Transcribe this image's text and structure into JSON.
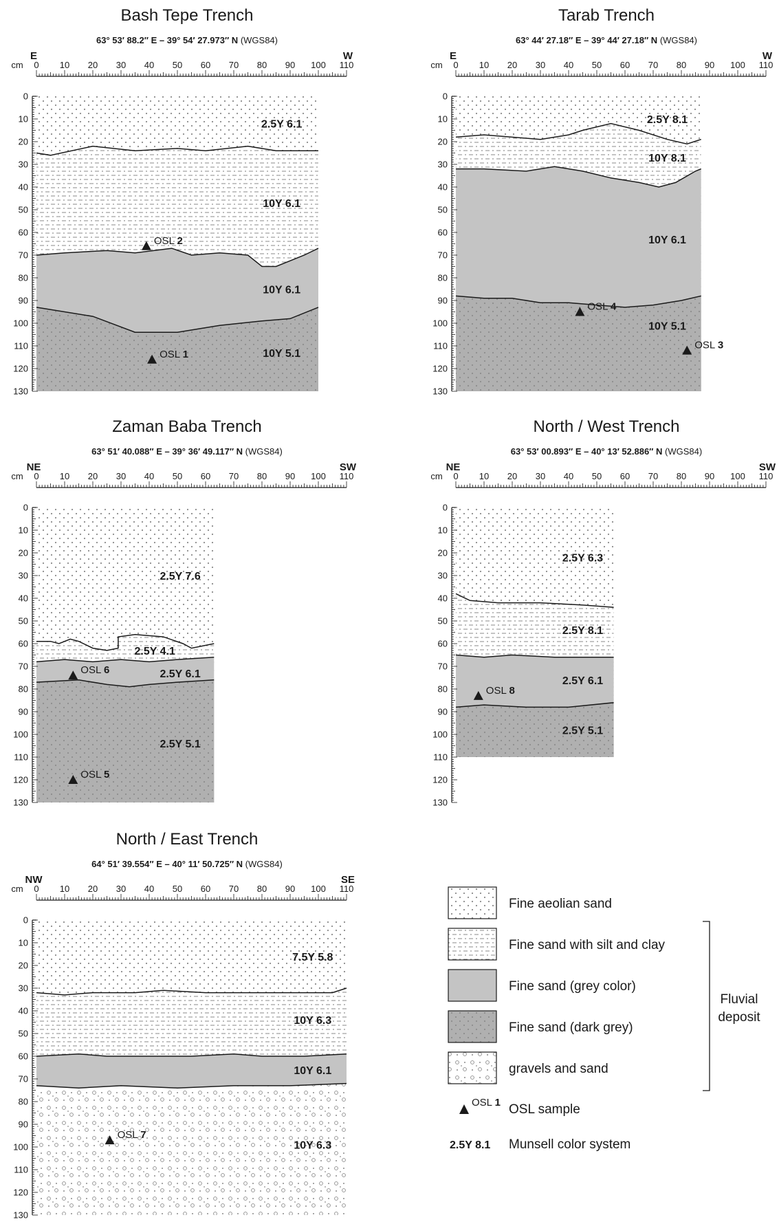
{
  "trenches": [
    {
      "id": "bash-tepe",
      "title": "Bash Tepe Trench",
      "coords": "63° 53′ 88.2″ E  –  39° 54′ 27.973″ N",
      "coords_suffix": "(WGS84)",
      "left_dir": "E",
      "right_dir": "W",
      "width_cm": 100,
      "layers": [
        {
          "pattern": "aeolian",
          "top": [
            [
              0,
              25
            ],
            [
              5,
              26
            ],
            [
              20,
              22
            ],
            [
              35,
              24
            ],
            [
              50,
              23
            ],
            [
              60,
              24
            ],
            [
              75,
              22
            ],
            [
              85,
              24
            ],
            [
              100,
              24
            ]
          ]
        },
        {
          "pattern": "silt",
          "top": [
            [
              0,
              70
            ],
            [
              10,
              69
            ],
            [
              25,
              68
            ],
            [
              35,
              69
            ],
            [
              48,
              67
            ],
            [
              55,
              70
            ],
            [
              65,
              69
            ],
            [
              75,
              70
            ],
            [
              80,
              75
            ],
            [
              85,
              75
            ],
            [
              95,
              70
            ],
            [
              100,
              67
            ]
          ]
        },
        {
          "pattern": "grey",
          "top": [
            [
              0,
              93
            ],
            [
              20,
              97
            ],
            [
              35,
              104
            ],
            [
              50,
              104
            ],
            [
              65,
              101
            ],
            [
              80,
              99
            ],
            [
              90,
              98
            ],
            [
              100,
              93
            ]
          ]
        },
        {
          "pattern": "darkgrey",
          "top": [
            [
              0,
              130
            ],
            [
              100,
              130
            ]
          ]
        }
      ],
      "labels": [
        {
          "text": "2.5Y 6.1",
          "x": 87,
          "y": 12
        },
        {
          "text": "10Y 6.1",
          "x": 87,
          "y": 47
        },
        {
          "text": "10Y 6.1",
          "x": 87,
          "y": 85
        },
        {
          "text": "10Y 5.1",
          "x": 87,
          "y": 113
        }
      ],
      "osl": [
        {
          "num": "2",
          "x": 39,
          "y": 66
        },
        {
          "num": "1",
          "x": 41,
          "y": 116
        }
      ]
    },
    {
      "id": "tarab",
      "title": "Tarab Trench",
      "coords": "63° 44′ 27.18″ E  –  39° 44′ 27.18″ N",
      "coords_suffix": "(WGS84)",
      "left_dir": "E",
      "right_dir": "W",
      "width_cm": 87,
      "layers": [
        {
          "pattern": "aeolian",
          "top": [
            [
              0,
              18
            ],
            [
              10,
              17
            ],
            [
              30,
              19
            ],
            [
              40,
              17
            ],
            [
              45,
              15
            ],
            [
              55,
              12
            ],
            [
              65,
              15
            ],
            [
              75,
              19
            ],
            [
              82,
              21
            ],
            [
              87,
              19
            ]
          ]
        },
        {
          "pattern": "silt",
          "top": [
            [
              0,
              32
            ],
            [
              10,
              32
            ],
            [
              25,
              33
            ],
            [
              35,
              31
            ],
            [
              45,
              33
            ],
            [
              55,
              36
            ],
            [
              65,
              38
            ],
            [
              72,
              40
            ],
            [
              78,
              38
            ],
            [
              85,
              33
            ],
            [
              87,
              32
            ]
          ]
        },
        {
          "pattern": "grey",
          "top": [
            [
              0,
              88
            ],
            [
              10,
              89
            ],
            [
              20,
              89
            ],
            [
              30,
              91
            ],
            [
              40,
              91
            ],
            [
              50,
              92
            ],
            [
              60,
              93
            ],
            [
              70,
              92
            ],
            [
              80,
              90
            ],
            [
              87,
              88
            ]
          ]
        },
        {
          "pattern": "darkgrey",
          "top": [
            [
              0,
              130
            ],
            [
              87,
              130
            ]
          ]
        }
      ],
      "labels": [
        {
          "text": "2.5Y 8.1",
          "x": 75,
          "y": 10
        },
        {
          "text": "10Y 8.1",
          "x": 75,
          "y": 27
        },
        {
          "text": "10Y 6.1",
          "x": 75,
          "y": 63
        },
        {
          "text": "10Y 5.1",
          "x": 75,
          "y": 101
        }
      ],
      "osl": [
        {
          "num": "4",
          "x": 44,
          "y": 95
        },
        {
          "num": "3",
          "x": 82,
          "y": 112
        }
      ]
    },
    {
      "id": "zaman-baba",
      "title": "Zaman Baba Trench",
      "coords": "63° 51′ 40.088″ E  –  39° 36′ 49.117″ N",
      "coords_suffix": "(WGS84)",
      "left_dir": "NE",
      "right_dir": "SW",
      "width_cm": 63,
      "layers": [
        {
          "pattern": "aeolian",
          "top": [
            [
              0,
              59
            ],
            [
              5,
              59
            ],
            [
              8,
              60
            ],
            [
              12,
              58
            ],
            [
              15,
              59
            ],
            [
              20,
              62
            ],
            [
              25,
              63
            ],
            [
              29,
              62
            ],
            [
              29,
              57
            ],
            [
              35,
              56
            ],
            [
              45,
              57
            ],
            [
              52,
              60
            ],
            [
              55,
              62
            ],
            [
              63,
              60
            ]
          ]
        },
        {
          "pattern": "silt",
          "top": [
            [
              0,
              68
            ],
            [
              10,
              67
            ],
            [
              20,
              68
            ],
            [
              30,
              67
            ],
            [
              40,
              68
            ],
            [
              50,
              67
            ],
            [
              63,
              66
            ]
          ]
        },
        {
          "pattern": "grey",
          "top": [
            [
              0,
              77
            ],
            [
              15,
              76
            ],
            [
              25,
              78
            ],
            [
              33,
              79
            ],
            [
              40,
              78
            ],
            [
              50,
              77
            ],
            [
              63,
              76
            ]
          ]
        },
        {
          "pattern": "darkgrey",
          "top": [
            [
              0,
              130
            ],
            [
              63,
              130
            ]
          ]
        }
      ],
      "labels": [
        {
          "text": "2.5Y 7.6",
          "x": 51,
          "y": 30
        },
        {
          "text": "2.5Y 4.1",
          "x": 42,
          "y": 63
        },
        {
          "text": "2.5Y 6.1",
          "x": 51,
          "y": 73
        },
        {
          "text": "2.5Y 5.1",
          "x": 51,
          "y": 104
        }
      ],
      "osl": [
        {
          "num": "6",
          "x": 13,
          "y": 74
        },
        {
          "num": "5",
          "x": 13,
          "y": 120
        }
      ]
    },
    {
      "id": "north-west",
      "title": "North / West Trench",
      "coords": "63° 53′ 00.893″ E  –  40° 13′ 52.886″ N",
      "coords_suffix": "(WGS84)",
      "left_dir": "NE",
      "right_dir": "SW",
      "width_cm": 56,
      "layers": [
        {
          "pattern": "aeolian",
          "top": [
            [
              0,
              38
            ],
            [
              5,
              41
            ],
            [
              15,
              42
            ],
            [
              30,
              42
            ],
            [
              45,
              43
            ],
            [
              56,
              44
            ]
          ]
        },
        {
          "pattern": "silt",
          "top": [
            [
              0,
              65
            ],
            [
              10,
              66
            ],
            [
              20,
              65
            ],
            [
              35,
              66
            ],
            [
              56,
              66
            ]
          ]
        },
        {
          "pattern": "grey",
          "top": [
            [
              0,
              88
            ],
            [
              10,
              87
            ],
            [
              25,
              88
            ],
            [
              40,
              88
            ],
            [
              56,
              86
            ]
          ]
        },
        {
          "pattern": "darkgrey",
          "top": [
            [
              0,
              110
            ],
            [
              56,
              110
            ]
          ]
        }
      ],
      "labels": [
        {
          "text": "2.5Y 6.3",
          "x": 45,
          "y": 22
        },
        {
          "text": "2.5Y 8.1",
          "x": 45,
          "y": 54
        },
        {
          "text": "2.5Y 6.1",
          "x": 45,
          "y": 76
        },
        {
          "text": "2.5Y 5.1",
          "x": 45,
          "y": 98
        }
      ],
      "osl": [
        {
          "num": "8",
          "x": 8,
          "y": 83
        }
      ]
    },
    {
      "id": "north-east",
      "title": "North / East Trench",
      "coords": "64° 51′ 39.554″ E  –  40° 11′ 50.725″ N",
      "coords_suffix": "(WGS84)",
      "left_dir": "NW",
      "right_dir": "SE",
      "width_cm": 110,
      "layers": [
        {
          "pattern": "aeolian",
          "top": [
            [
              0,
              32
            ],
            [
              10,
              33
            ],
            [
              20,
              32
            ],
            [
              35,
              32
            ],
            [
              45,
              31
            ],
            [
              60,
              32
            ],
            [
              75,
              32
            ],
            [
              90,
              32
            ],
            [
              105,
              32
            ],
            [
              110,
              30
            ]
          ]
        },
        {
          "pattern": "silt",
          "top": [
            [
              0,
              60
            ],
            [
              15,
              59
            ],
            [
              25,
              60
            ],
            [
              40,
              60
            ],
            [
              55,
              60
            ],
            [
              70,
              59
            ],
            [
              80,
              60
            ],
            [
              95,
              60
            ],
            [
              110,
              59
            ]
          ]
        },
        {
          "pattern": "grey",
          "top": [
            [
              0,
              73
            ],
            [
              15,
              74
            ],
            [
              30,
              73
            ],
            [
              50,
              74
            ],
            [
              70,
              73
            ],
            [
              90,
              73
            ],
            [
              110,
              72
            ]
          ]
        },
        {
          "pattern": "gravel",
          "top": [
            [
              0,
              130
            ],
            [
              110,
              130
            ]
          ]
        }
      ],
      "labels": [
        {
          "text": "7.5Y 5.8",
          "x": 98,
          "y": 16
        },
        {
          "text": "10Y 6.3",
          "x": 98,
          "y": 44
        },
        {
          "text": "10Y 6.1",
          "x": 98,
          "y": 66
        },
        {
          "text": "10Y 6.3",
          "x": 98,
          "y": 99
        }
      ],
      "osl": [
        {
          "num": "7",
          "x": 26,
          "y": 97
        }
      ]
    }
  ],
  "axis": {
    "unit": "cm",
    "depth_ticks": [
      "0",
      "10",
      "20",
      "30",
      "40",
      "50",
      "60",
      "70",
      "80",
      "90",
      "100",
      "110",
      "120",
      "130"
    ],
    "width_ticks": [
      "0",
      "10",
      "20",
      "30",
      "40",
      "50",
      "60",
      "70",
      "80",
      "90",
      "100",
      "110"
    ]
  },
  "legend": {
    "items": [
      {
        "pattern": "aeolian",
        "label": "Fine aeolian sand"
      },
      {
        "pattern": "silt",
        "label": "Fine sand with silt and clay"
      },
      {
        "pattern": "grey",
        "label": "Fine sand (grey color)"
      },
      {
        "pattern": "darkgrey",
        "label": "Fine sand (dark grey)"
      },
      {
        "pattern": "gravel",
        "label": "gravels and sand"
      }
    ],
    "fluvial_label_line1": "Fluvial",
    "fluvial_label_line2": "deposit",
    "osl_symbol_text": "OSL",
    "osl_symbol_num": "1",
    "osl_label": "OSL sample",
    "munsell_example": "2.5Y 8.1",
    "munsell_label": "Munsell color system"
  },
  "osl_prefix": "OSL",
  "colors": {
    "grey": "#c4c4c4",
    "darkgrey": "#b0b0b0",
    "dot": "#8a8a8a",
    "line": "#1a1a1a"
  }
}
